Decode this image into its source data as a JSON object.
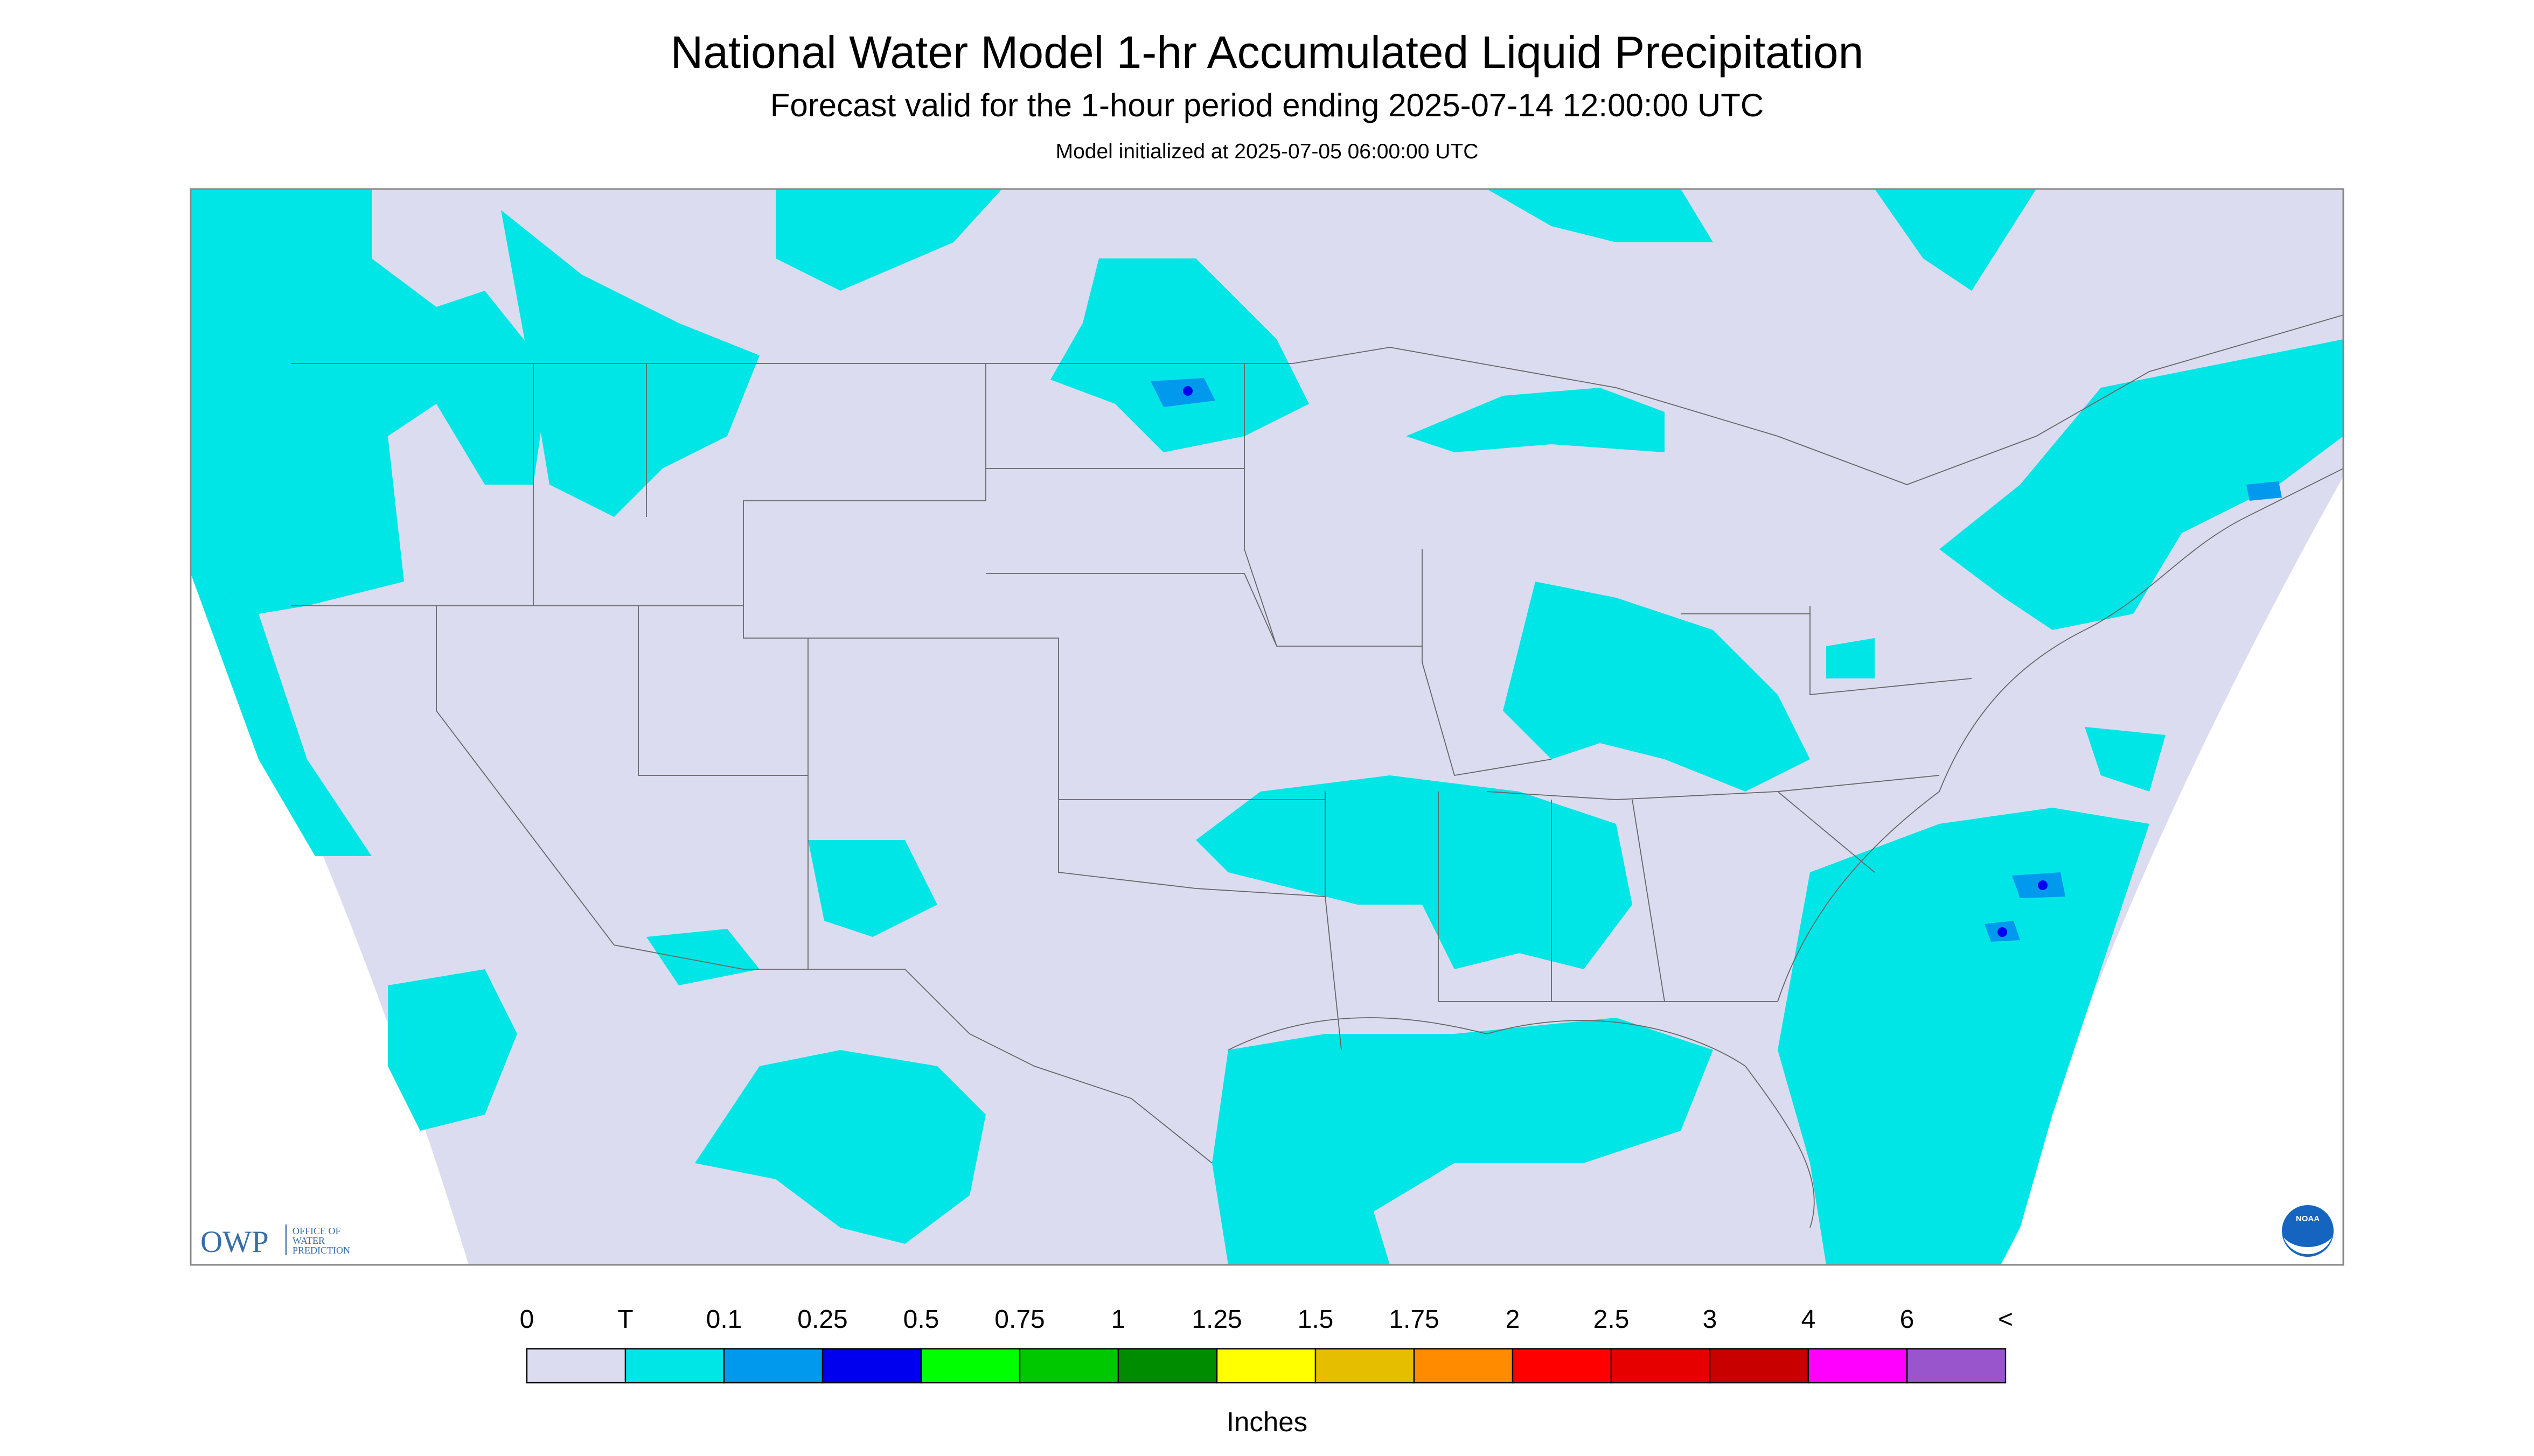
{
  "header": {
    "title": "National Water Model 1-hr Accumulated Liquid Precipitation",
    "subtitle": "Forecast valid for the 1-hour period ending 2025-07-14 12:00:00 UTC",
    "note": "Model initialized at 2025-07-05 06:00:00 UTC"
  },
  "logos": {
    "owp": "OWP",
    "owp_name": [
      "OFFICE OF",
      "WATER",
      "PREDICTION"
    ],
    "noaa": "NOAA"
  },
  "legend": {
    "labels": [
      "0",
      "T",
      "0.1",
      "0.25",
      "0.5",
      "0.75",
      "1",
      "1.25",
      "1.5",
      "1.75",
      "2",
      "2.5",
      "3",
      "4",
      "6",
      "<"
    ],
    "colors": [
      "#dcdcf0",
      "#00e5e5",
      "#0099ee",
      "#0000ee",
      "#00ff00",
      "#00c800",
      "#008c00",
      "#ffff00",
      "#e6be00",
      "#ff8c00",
      "#ff0000",
      "#e60000",
      "#c80000",
      "#ff00ff",
      "#9955cc"
    ],
    "unit": "Inches"
  }
}
